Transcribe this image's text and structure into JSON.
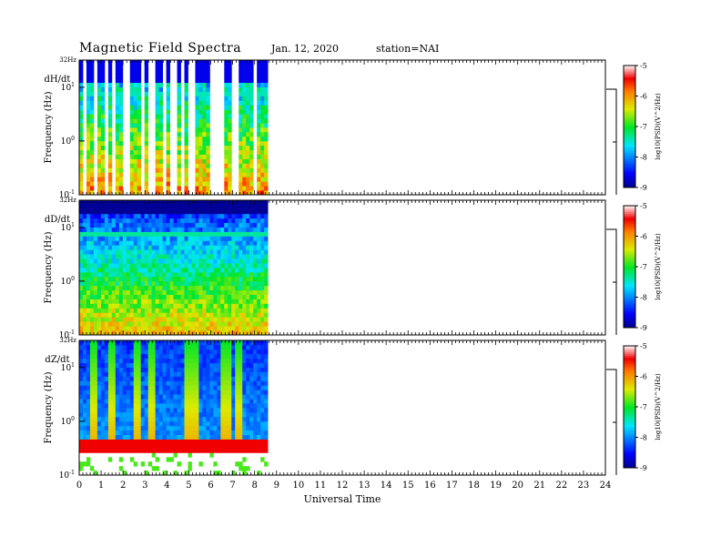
{
  "header": {
    "title": "Magnetic  Field  Spectra",
    "date": "Jan. 12, 2020",
    "station": "station=NAI"
  },
  "colorbar": {
    "label": "log10(PSD)(V^2/Hz)",
    "ticks": [
      "-5",
      "-6",
      "-7",
      "-8",
      "-9"
    ]
  },
  "chart_data": [
    {
      "type": "heatmap",
      "panel": "dH/dt",
      "title": "",
      "xlabel": "",
      "ylabel": "Frequency  (Hz)",
      "y_top_label": "32Hz",
      "yscale": "log",
      "ylim": [
        0.1,
        32
      ],
      "y_ticks": [
        "10^1",
        "10^0",
        "10^-1"
      ],
      "xlim": [
        0,
        24
      ],
      "data_extent_hours": [
        0,
        8.6
      ],
      "colorscale": {
        "label": "log10(PSD)(V^2/Hz)",
        "range": [
          -9,
          -5
        ]
      },
      "signature": "dropout-stripes"
    },
    {
      "type": "heatmap",
      "panel": "dD/dt",
      "title": "",
      "xlabel": "",
      "ylabel": "Frequency  (Hz)",
      "y_top_label": "32Hz",
      "yscale": "log",
      "ylim": [
        0.1,
        32
      ],
      "y_ticks": [
        "10^1",
        "10^0",
        "10^-1"
      ],
      "xlim": [
        0,
        24
      ],
      "data_extent_hours": [
        0,
        8.6
      ],
      "colorscale": {
        "label": "log10(PSD)(V^2/Hz)",
        "range": [
          -9,
          -5
        ]
      },
      "signature": "smooth-background"
    },
    {
      "type": "heatmap",
      "panel": "dZ/dt",
      "title": "",
      "xlabel": "Universal  Time",
      "ylabel": "Frequency  (Hz)",
      "y_top_label": "32Hz",
      "yscale": "log",
      "ylim": [
        0.1,
        32
      ],
      "y_ticks": [
        "10^1",
        "10^0",
        "10^-1"
      ],
      "xlim": [
        0,
        24
      ],
      "x_ticks": [
        "0",
        "1",
        "2",
        "3",
        "4",
        "5",
        "6",
        "7",
        "8",
        "9",
        "10",
        "11",
        "12",
        "13",
        "14",
        "15",
        "16",
        "17",
        "18",
        "19",
        "20",
        "21",
        "22",
        "23",
        "24"
      ],
      "data_extent_hours": [
        0,
        8.6
      ],
      "colorscale": {
        "label": "log10(PSD)(V^2/Hz)",
        "range": [
          -9,
          -5
        ]
      },
      "signature": "vertical-plumes",
      "plume_hours": [
        0.6,
        1.5,
        2.6,
        3.3,
        5.0,
        5.2,
        6.7,
        7.3
      ]
    }
  ]
}
